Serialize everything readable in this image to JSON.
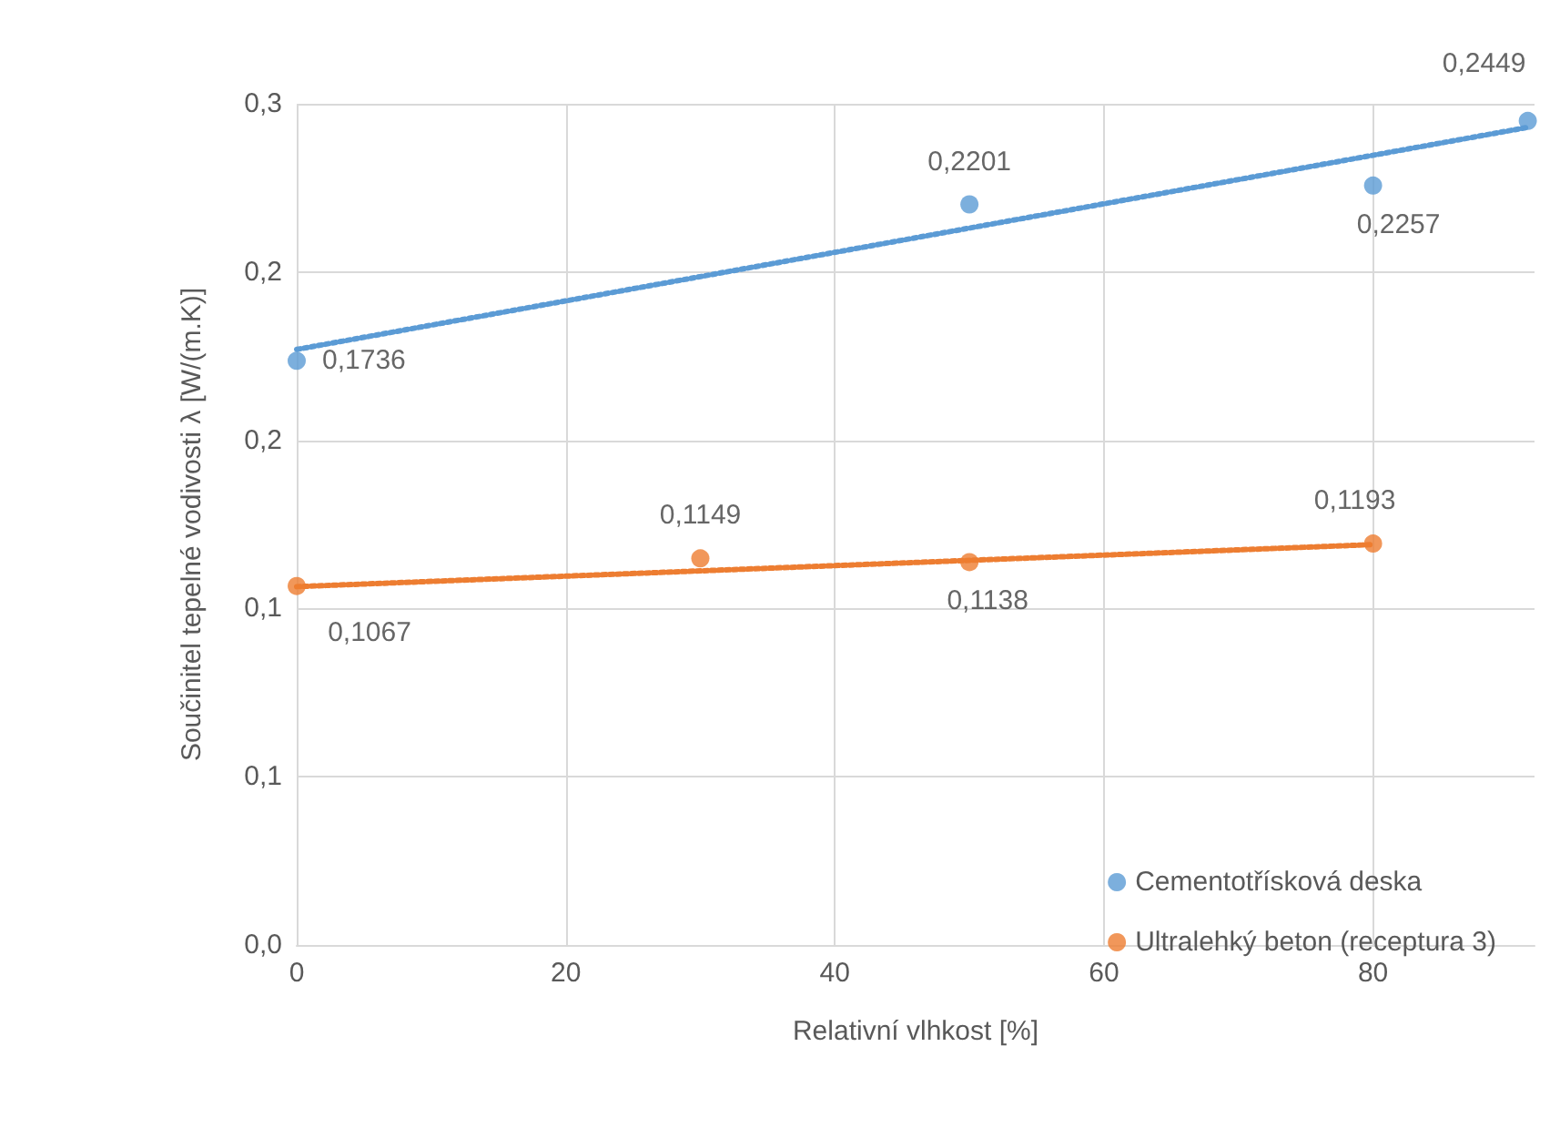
{
  "chart_data": {
    "type": "scatter",
    "xlabel": "Relativní vlhkost [%]",
    "ylabel": "Součinitel tepelné vodivosti λ [W/(m.K)]",
    "xlim": [
      0,
      92
    ],
    "xticks": [
      0,
      20,
      40,
      60,
      80
    ],
    "ylim": [
      0,
      0.25
    ],
    "yticks": [
      {
        "value": 0,
        "label": "0,0"
      },
      {
        "value": 0.05,
        "label": "0,1"
      },
      {
        "value": 0.1,
        "label": "0,1"
      },
      {
        "value": 0.15,
        "label": "0,2"
      },
      {
        "value": 0.2,
        "label": "0,2"
      },
      {
        "value": 0.25,
        "label": "0,3"
      }
    ],
    "grid": true,
    "legend": "bottom right",
    "marker": "circle",
    "series": [
      {
        "name": "Cementotřísková deska",
        "color": "#5b9bd5",
        "x": [
          0,
          50,
          80,
          91.5
        ],
        "values": [
          0.1736,
          0.2201,
          0.2257,
          0.2449
        ],
        "value_labels": [
          "0,1736",
          "0,2201",
          "0,2257",
          "0,2449"
        ]
      },
      {
        "name": "Ultralehký beton (receptura 3)",
        "color": "#ed7d31",
        "x": [
          0,
          30,
          50,
          80
        ],
        "values": [
          0.1067,
          0.1149,
          0.1138,
          0.1193
        ],
        "value_labels": [
          "0,1067",
          "0,1149",
          "0,1138",
          "0,1193"
        ]
      },
      {
        "type": "line",
        "line_style": "dotted",
        "marker": "none",
        "color": "#5b9bd5",
        "x": [
          0,
          91.5
        ],
        "values": [
          0.177,
          0.243
        ]
      },
      {
        "type": "line",
        "line_style": "dotted",
        "marker": "none",
        "color": "#ed7d31",
        "x": [
          0,
          80
        ],
        "values": [
          0.1065,
          0.119
        ]
      }
    ]
  }
}
